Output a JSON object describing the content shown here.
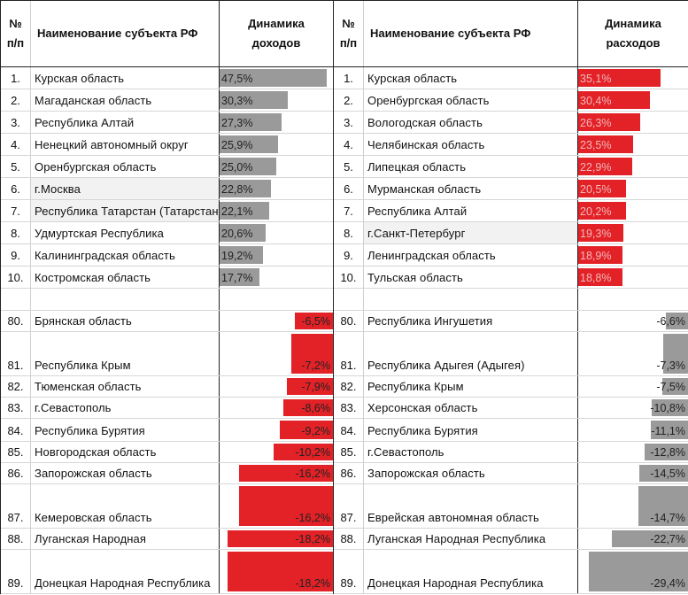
{
  "headers": {
    "num": "№ п/п",
    "num_line1": "№",
    "num_line2": "п/п",
    "name": "Наименование субъекта РФ",
    "income_line1": "Динамика",
    "income_line2": "доходов",
    "expense_line1": "Динамика",
    "expense_line2": "расходов"
  },
  "colors": {
    "gray_bar": "#9a9a9a",
    "red_bar": "#e32228"
  },
  "income": {
    "top": [
      {
        "n": "1.",
        "name": "Курская область",
        "value": "47,5%",
        "v": 47.5
      },
      {
        "n": "2.",
        "name": "Магаданская область",
        "value": "30,3%",
        "v": 30.3
      },
      {
        "n": "3.",
        "name": "Республика Алтай",
        "value": "27,3%",
        "v": 27.3
      },
      {
        "n": "4.",
        "name": "Ненецкий автономный округ",
        "value": "25,9%",
        "v": 25.9
      },
      {
        "n": "5.",
        "name": "Оренбургская область",
        "value": "25,0%",
        "v": 25.0
      },
      {
        "n": "6.",
        "name": "г.Москва",
        "value": "22,8%",
        "v": 22.8
      },
      {
        "n": "7.",
        "name": "Республика Татарстан (Татарстан)",
        "value": "22,1%",
        "v": 22.1
      },
      {
        "n": "8.",
        "name": "Удмуртская Республика",
        "value": "20,6%",
        "v": 20.6
      },
      {
        "n": "9.",
        "name": "Калининградская область",
        "value": "19,2%",
        "v": 19.2
      },
      {
        "n": "10.",
        "name": "Костромская область",
        "value": "17,7%",
        "v": 17.7
      }
    ],
    "bottom": [
      {
        "n": "80.",
        "name": "Брянская область",
        "value": "-6,5%",
        "v": -6.5
      },
      {
        "n": "81.",
        "name": "Республика Крым",
        "value": "-7,2%",
        "v": -7.2
      },
      {
        "n": "82.",
        "name": "Тюменская область",
        "value": "-7,9%",
        "v": -7.9
      },
      {
        "n": "83.",
        "name": "г.Севастополь",
        "value": "-8,6%",
        "v": -8.6
      },
      {
        "n": "84.",
        "name": "Республика Бурятия",
        "value": "-9,2%",
        "v": -9.2
      },
      {
        "n": "85.",
        "name": "Новгородская область",
        "value": "-10,2%",
        "v": -10.2
      },
      {
        "n": "86.",
        "name": "Запорожская область",
        "value": "-16,2%",
        "v": -16.2
      },
      {
        "n": "87.",
        "name": "Кемеровская область",
        "value": "-16,2%",
        "v": -16.2
      },
      {
        "n": "88.",
        "name": "Луганская Народная",
        "value": "-18,2%",
        "v": -18.2
      },
      {
        "n": "89.",
        "name": "Донецкая Народная Республика",
        "value": "-18,2%",
        "v": -18.2
      }
    ]
  },
  "expense": {
    "top": [
      {
        "n": "1.",
        "name": "Курская область",
        "value": "35,1%",
        "v": 35.1
      },
      {
        "n": "2.",
        "name": "Оренбургская область",
        "value": "30,4%",
        "v": 30.4
      },
      {
        "n": "3.",
        "name": "Вологодская область",
        "value": "26,3%",
        "v": 26.3
      },
      {
        "n": "4.",
        "name": "Челябинская область",
        "value": "23,5%",
        "v": 23.5
      },
      {
        "n": "5.",
        "name": "Липецкая область",
        "value": "22,9%",
        "v": 22.9
      },
      {
        "n": "6.",
        "name": "Мурманская область",
        "value": "20,5%",
        "v": 20.5
      },
      {
        "n": "7.",
        "name": "Республика Алтай",
        "value": "20,2%",
        "v": 20.2
      },
      {
        "n": "8.",
        "name": "г.Санкт-Петербург",
        "value": "19,3%",
        "v": 19.3
      },
      {
        "n": "9.",
        "name": "Ленинградская область",
        "value": "18,9%",
        "v": 18.9
      },
      {
        "n": "10.",
        "name": "Тульская область",
        "value": "18,8%",
        "v": 18.8
      }
    ],
    "bottom": [
      {
        "n": "80.",
        "name": "Республика Ингушетия",
        "value": "-6,6%",
        "v": -6.6
      },
      {
        "n": "81.",
        "name": "Республика Адыгея (Адыгея)",
        "value": "-7,3%",
        "v": -7.3
      },
      {
        "n": "82.",
        "name": "Республика Крым",
        "value": "-7,5%",
        "v": -7.5
      },
      {
        "n": "83.",
        "name": "Херсонская область",
        "value": "-10,8%",
        "v": -10.8
      },
      {
        "n": "84.",
        "name": "Республика Бурятия",
        "value": "-11,1%",
        "v": -11.1
      },
      {
        "n": "85.",
        "name": "г.Севастополь",
        "value": "-12,8%",
        "v": -12.8
      },
      {
        "n": "86.",
        "name": "Запорожская область",
        "value": "-14,5%",
        "v": -14.5
      },
      {
        "n": "87.",
        "name": "Еврейская автономная область",
        "value": "-14,7%",
        "v": -14.7
      },
      {
        "n": "88.",
        "name": "Луганская Народная Республика",
        "value": "-22,7%",
        "v": -22.7
      },
      {
        "n": "89.",
        "name": "Донецкая Народная Республика",
        "value": "-29,4%",
        "v": -29.4
      }
    ]
  }
}
